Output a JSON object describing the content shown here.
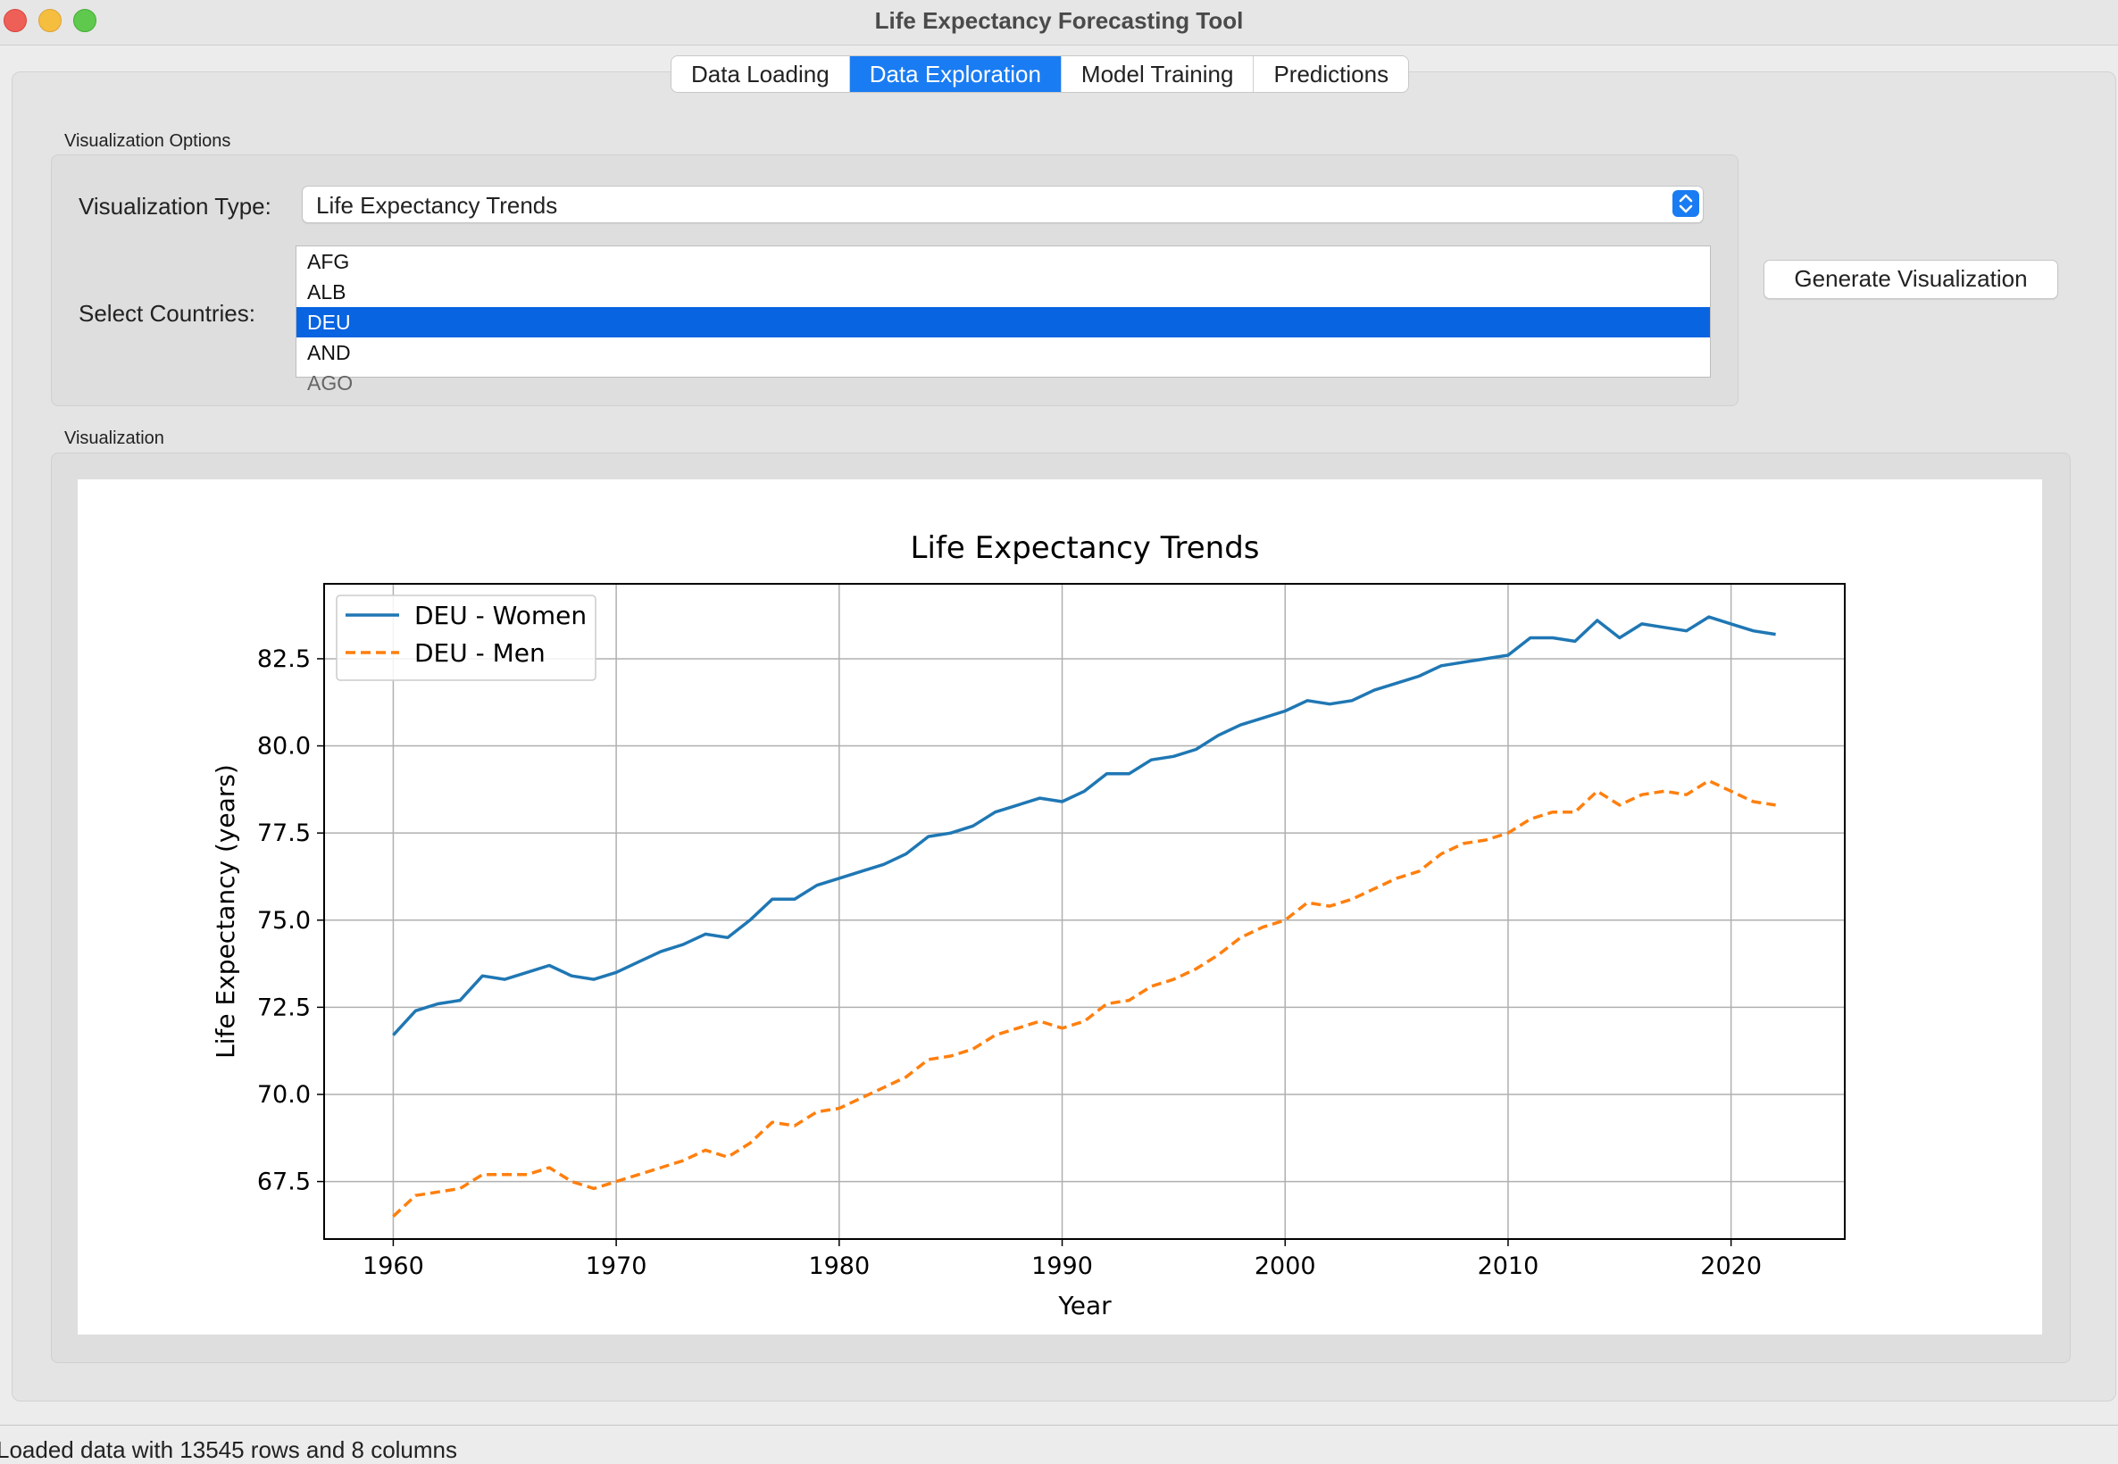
{
  "window": {
    "title": "Life Expectancy Forecasting Tool"
  },
  "tabs": [
    {
      "label": "Data Loading",
      "active": false
    },
    {
      "label": "Data Exploration",
      "active": true
    },
    {
      "label": "Model Training",
      "active": false
    },
    {
      "label": "Predictions",
      "active": false
    }
  ],
  "options": {
    "group_title": "Visualization Options",
    "type_label": "Visualization Type:",
    "type_value": "Life Expectancy Trends",
    "countries_label": "Select Countries:",
    "countries": [
      "AFG",
      "ALB",
      "DEU",
      "AND",
      "AGO"
    ],
    "selected_country": "DEU",
    "generate_button": "Generate Visualization"
  },
  "visualization": {
    "group_title": "Visualization"
  },
  "status": {
    "text": "Loaded data with 13545 rows and 8 columns"
  },
  "colors": {
    "accent": "#1a7cf2",
    "women": "#1f77b4",
    "men": "#ff7f0e"
  },
  "chart_data": {
    "type": "line",
    "title": "Life Expectancy Trends",
    "xlabel": "Year",
    "ylabel": "Life Expectancy (years)",
    "xlim": [
      1956.9,
      2025.1
    ],
    "ylim": [
      65.85,
      84.65
    ],
    "xticks": [
      1960,
      1970,
      1980,
      1990,
      2000,
      2010,
      2020
    ],
    "yticks": [
      67.5,
      70.0,
      72.5,
      75.0,
      77.5,
      80.0,
      82.5
    ],
    "grid": true,
    "legend_position": "upper left",
    "x": [
      1960,
      1961,
      1962,
      1963,
      1964,
      1965,
      1966,
      1967,
      1968,
      1969,
      1970,
      1971,
      1972,
      1973,
      1974,
      1975,
      1976,
      1977,
      1978,
      1979,
      1980,
      1981,
      1982,
      1983,
      1984,
      1985,
      1986,
      1987,
      1988,
      1989,
      1990,
      1991,
      1992,
      1993,
      1994,
      1995,
      1996,
      1997,
      1998,
      1999,
      2000,
      2001,
      2002,
      2003,
      2004,
      2005,
      2006,
      2007,
      2008,
      2009,
      2010,
      2011,
      2012,
      2013,
      2014,
      2015,
      2016,
      2017,
      2018,
      2019,
      2020,
      2021,
      2022
    ],
    "series": [
      {
        "name": "DEU - Women",
        "style": "solid",
        "values": [
          71.7,
          72.4,
          72.6,
          72.7,
          73.4,
          73.3,
          73.5,
          73.7,
          73.4,
          73.3,
          73.5,
          73.8,
          74.1,
          74.3,
          74.6,
          74.5,
          75.0,
          75.6,
          75.6,
          76.0,
          76.2,
          76.4,
          76.6,
          76.9,
          77.4,
          77.5,
          77.7,
          78.1,
          78.3,
          78.5,
          78.4,
          78.7,
          79.2,
          79.2,
          79.6,
          79.7,
          79.9,
          80.3,
          80.6,
          80.8,
          81.0,
          81.3,
          81.2,
          81.3,
          81.6,
          81.8,
          82.0,
          82.3,
          82.4,
          82.5,
          82.6,
          83.1,
          83.1,
          83.0,
          83.6,
          83.1,
          83.5,
          83.4,
          83.3,
          83.7,
          83.5,
          83.3,
          83.2
        ]
      },
      {
        "name": "DEU - Men",
        "style": "dashed",
        "values": [
          66.5,
          67.1,
          67.2,
          67.3,
          67.7,
          67.7,
          67.7,
          67.9,
          67.5,
          67.3,
          67.5,
          67.7,
          67.9,
          68.1,
          68.4,
          68.2,
          68.6,
          69.2,
          69.1,
          69.5,
          69.6,
          69.9,
          70.2,
          70.5,
          71.0,
          71.1,
          71.3,
          71.7,
          71.9,
          72.1,
          71.9,
          72.1,
          72.6,
          72.7,
          73.1,
          73.3,
          73.6,
          74.0,
          74.5,
          74.8,
          75.0,
          75.5,
          75.4,
          75.6,
          75.9,
          76.2,
          76.4,
          76.9,
          77.2,
          77.3,
          77.5,
          77.9,
          78.1,
          78.1,
          78.7,
          78.3,
          78.6,
          78.7,
          78.6,
          79.0,
          78.7,
          78.4,
          78.3
        ]
      }
    ]
  }
}
